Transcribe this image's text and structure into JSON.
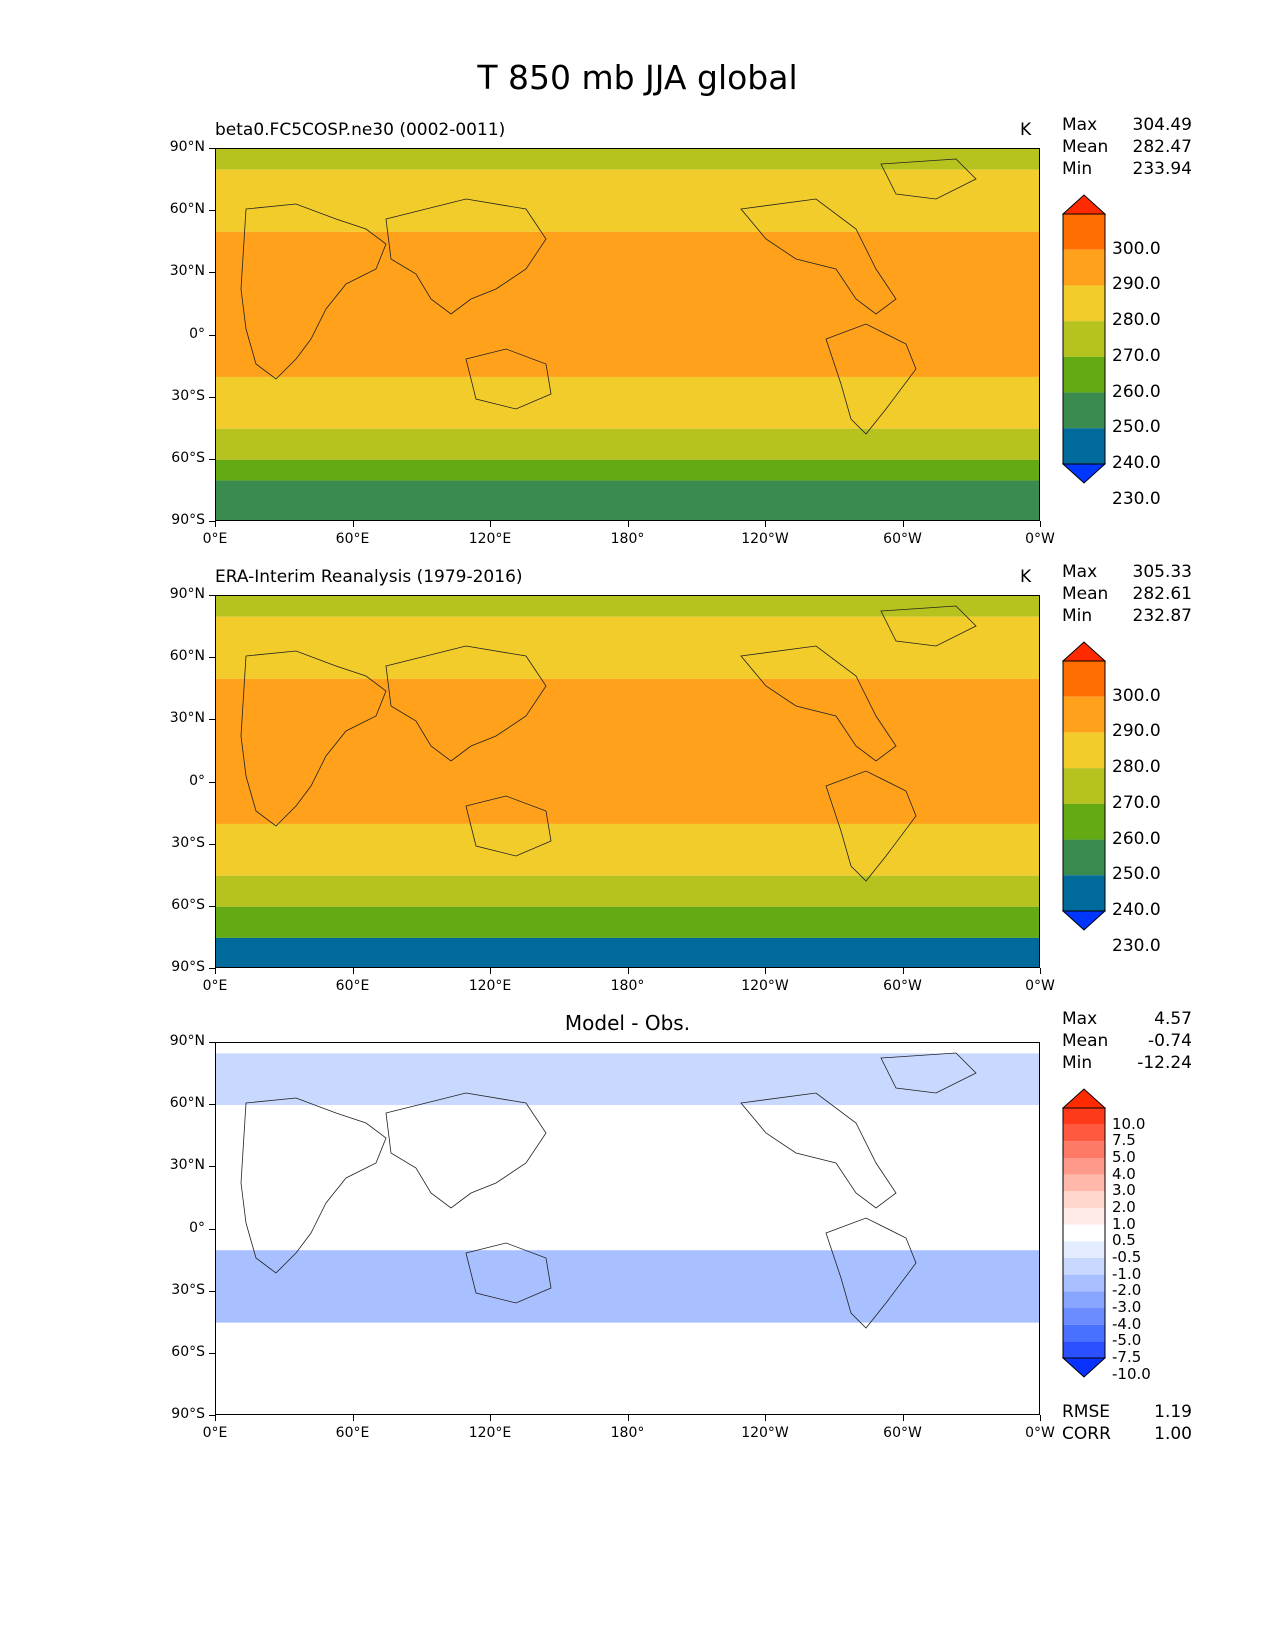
{
  "figure_title": "T 850 mb JJA global",
  "chart_data": [
    {
      "type": "heatmap",
      "title": "beta0.FC5COSP.ne30 (0002-0011)",
      "units": "K",
      "stats": {
        "Max": "304.49",
        "Mean": "282.47",
        "Min": "233.94"
      },
      "colorbar": {
        "levels": [
          "300.0",
          "290.0",
          "280.0",
          "270.0",
          "260.0",
          "250.0",
          "240.0",
          "230.0"
        ],
        "colors": [
          "#ff2a00",
          "#ff6e00",
          "#ffa11a",
          "#f2cc2a",
          "#b6c21e",
          "#64aa14",
          "#3a8c4e",
          "#006a9a",
          "#0037ff"
        ]
      },
      "xticks": [
        "0°E",
        "60°E",
        "120°E",
        "180°",
        "120°W",
        "60°W",
        "0°W"
      ],
      "yticks": [
        "90°N",
        "60°N",
        "30°N",
        "0°",
        "30°S",
        "60°S",
        "90°S"
      ],
      "bands_by_latitude": [
        {
          "lat": [
            80,
            90
          ],
          "value": 265
        },
        {
          "lat": [
            50,
            80
          ],
          "value": 275
        },
        {
          "lat": [
            -20,
            50
          ],
          "value": 285
        },
        {
          "lat": [
            -45,
            -20
          ],
          "value": 275
        },
        {
          "lat": [
            -60,
            -45
          ],
          "value": 265
        },
        {
          "lat": [
            -70,
            -60
          ],
          "value": 255
        },
        {
          "lat": [
            -90,
            -70
          ],
          "value": 245
        }
      ]
    },
    {
      "type": "heatmap",
      "title": "ERA-Interim Reanalysis (1979-2016)",
      "units": "K",
      "stats": {
        "Max": "305.33",
        "Mean": "282.61",
        "Min": "232.87"
      },
      "colorbar": {
        "levels": [
          "300.0",
          "290.0",
          "280.0",
          "270.0",
          "260.0",
          "250.0",
          "240.0",
          "230.0"
        ],
        "colors": [
          "#ff2a00",
          "#ff6e00",
          "#ffa11a",
          "#f2cc2a",
          "#b6c21e",
          "#64aa14",
          "#3a8c4e",
          "#006a9a",
          "#0037ff"
        ]
      },
      "xticks": [
        "0°E",
        "60°E",
        "120°E",
        "180°",
        "120°W",
        "60°W",
        "0°W"
      ],
      "yticks": [
        "90°N",
        "60°N",
        "30°N",
        "0°",
        "30°S",
        "60°S",
        "90°S"
      ],
      "bands_by_latitude": [
        {
          "lat": [
            80,
            90
          ],
          "value": 265
        },
        {
          "lat": [
            50,
            80
          ],
          "value": 275
        },
        {
          "lat": [
            -20,
            50
          ],
          "value": 285
        },
        {
          "lat": [
            -45,
            -20
          ],
          "value": 275
        },
        {
          "lat": [
            -60,
            -45
          ],
          "value": 265
        },
        {
          "lat": [
            -75,
            -60
          ],
          "value": 255
        },
        {
          "lat": [
            -90,
            -75
          ],
          "value": 235
        }
      ]
    },
    {
      "type": "heatmap",
      "title": "Model - Obs.",
      "units": "",
      "stats": {
        "Max": "4.57",
        "Mean": "-0.74",
        "Min": "-12.24"
      },
      "extra_stats": {
        "RMSE": "1.19",
        "CORR": "1.00"
      },
      "colorbar": {
        "levels": [
          "10.0",
          "7.5",
          "5.0",
          "4.0",
          "3.0",
          "2.0",
          "1.0",
          "0.5",
          "-0.5",
          "-1.0",
          "-2.0",
          "-3.0",
          "-4.0",
          "-5.0",
          "-7.5",
          "-10.0"
        ],
        "colors": [
          "#ff2a00",
          "#ff3a1a",
          "#ff5a40",
          "#ff7a66",
          "#ff9a8a",
          "#ffb8aa",
          "#ffd6cc",
          "#ffeae6",
          "#ffffff",
          "#e4ecff",
          "#c8d8ff",
          "#a8c0ff",
          "#88a6ff",
          "#6a8cff",
          "#4a70ff",
          "#2a50ff",
          "#0a32ff"
        ]
      },
      "xticks": [
        "0°E",
        "60°E",
        "120°E",
        "180°",
        "120°W",
        "60°W",
        "0°W"
      ],
      "yticks": [
        "90°N",
        "60°N",
        "30°N",
        "0°",
        "30°S",
        "60°S",
        "90°S"
      ],
      "bands_by_latitude": [
        {
          "lat": [
            60,
            85
          ],
          "value": -1.5
        },
        {
          "lat": [
            -10,
            60
          ],
          "value": 0
        },
        {
          "lat": [
            -45,
            -10
          ],
          "value": -2.5
        },
        {
          "lat": [
            -70,
            -45
          ],
          "value": 0
        },
        {
          "lat": [
            -90,
            -70
          ],
          "value": 0
        }
      ]
    }
  ]
}
